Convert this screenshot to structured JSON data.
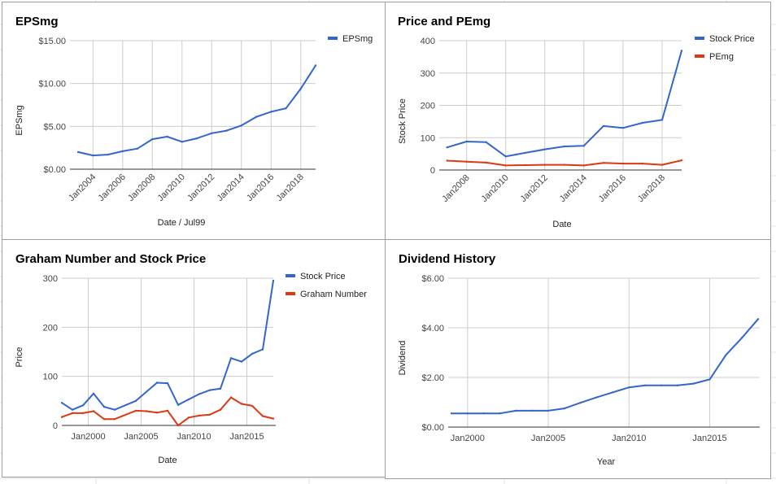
{
  "colors": {
    "blue": "#3366cc",
    "red": "#dc3912",
    "grid": "#cccccc"
  },
  "chart_data": [
    {
      "type": "line",
      "title": "EPSmg",
      "xlabel": "Date / Jul99",
      "ylabel": "EPSmg",
      "x_ticks": [
        "Jan2004",
        "Jan2006",
        "Jan2008",
        "Jan2010",
        "Jan2012",
        "Jan2014",
        "Jan2016",
        "Jan2018"
      ],
      "y_ticks": [
        "$0.00",
        "$5.00",
        "$10.00",
        "$15.00"
      ],
      "ylim": [
        0,
        15
      ],
      "legend": "right",
      "series": [
        {
          "name": "EPSmg",
          "color": "#3366cc",
          "x": [
            2003,
            2004,
            2005,
            2006,
            2007,
            2008,
            2009,
            2010,
            2011,
            2012,
            2013,
            2014,
            2015,
            2016,
            2017,
            2018,
            2019
          ],
          "values": [
            2.0,
            1.6,
            1.7,
            2.1,
            2.4,
            3.5,
            3.8,
            3.2,
            3.6,
            4.2,
            4.5,
            5.1,
            6.1,
            6.7,
            7.1,
            9.4,
            12.1
          ]
        }
      ]
    },
    {
      "type": "line",
      "title": "Price and PEmg",
      "xlabel": "Date",
      "ylabel": "Stock Price",
      "x_ticks": [
        "Jan2008",
        "Jan2010",
        "Jan2012",
        "Jan2014",
        "Jan2016",
        "Jan2018"
      ],
      "y_ticks": [
        "0",
        "100",
        "200",
        "300",
        "400"
      ],
      "ylim": [
        0,
        400
      ],
      "legend": "right",
      "series": [
        {
          "name": "Stock Price",
          "color": "#3366cc",
          "x": [
            2007,
            2008,
            2009,
            2010,
            2011,
            2012,
            2013,
            2014,
            2015,
            2016,
            2017,
            2018,
            2019
          ],
          "values": [
            70,
            88,
            86,
            42,
            53,
            64,
            73,
            75,
            136,
            130,
            146,
            155,
            369
          ]
        },
        {
          "name": "PEmg",
          "color": "#dc3912",
          "x": [
            2007,
            2008,
            2009,
            2010,
            2011,
            2012,
            2013,
            2014,
            2015,
            2016,
            2017,
            2018,
            2019
          ],
          "values": [
            29,
            26,
            23,
            14,
            15,
            16,
            16,
            14,
            22,
            20,
            20,
            16,
            30
          ]
        }
      ]
    },
    {
      "type": "line",
      "title": "Graham Number and Stock Price",
      "xlabel": "Date",
      "ylabel": "Price",
      "x_ticks": [
        "Jan2000",
        "Jan2005",
        "Jan2010",
        "Jan2015"
      ],
      "y_ticks": [
        "0",
        "100",
        "200",
        "300"
      ],
      "ylim": [
        0,
        300
      ],
      "legend": "right",
      "series": [
        {
          "name": "Stock Price",
          "color": "#3366cc",
          "x": [
            1997.5,
            1998.5,
            1999.5,
            2000.5,
            2001.5,
            2002.5,
            2004.5,
            2006.5,
            2007.5,
            2008.5,
            2009.5,
            2010.5,
            2011.5,
            2012.5,
            2013.5,
            2014.5,
            2015.5,
            2016.5,
            2017.5
          ],
          "values": [
            46,
            32,
            41,
            65,
            38,
            32,
            50,
            87,
            86,
            42,
            53,
            64,
            72,
            75,
            137,
            130,
            146,
            155,
            295
          ]
        },
        {
          "name": "Graham Number",
          "color": "#dc3912",
          "x": [
            1997.5,
            1998.5,
            1999.5,
            2000.5,
            2001.5,
            2002.5,
            2004.5,
            2005.5,
            2006.5,
            2007.5,
            2008.5,
            2009.5,
            2010.5,
            2011.5,
            2012.5,
            2013.5,
            2014.5,
            2015.5,
            2016.5,
            2017.5
          ],
          "values": [
            17,
            25,
            25,
            29,
            13,
            13,
            30,
            29,
            26,
            30,
            0,
            16,
            20,
            22,
            32,
            57,
            44,
            40,
            19,
            14
          ]
        }
      ]
    },
    {
      "type": "line",
      "title": "Dividend History",
      "xlabel": "Year",
      "ylabel": "Dividend",
      "x_ticks": [
        "Jan2000",
        "Jan2005",
        "Jan2010",
        "Jan2015"
      ],
      "y_ticks": [
        "$0.00",
        "$2.00",
        "$4.00",
        "$6.00"
      ],
      "ylim": [
        0,
        6
      ],
      "series": [
        {
          "name": "Dividend",
          "color": "#3366cc",
          "x": [
            1999,
            2000,
            2001,
            2002,
            2003,
            2004,
            2005,
            2006,
            2007,
            2008,
            2009,
            2010,
            2011,
            2012,
            2013,
            2014,
            2015,
            2016,
            2017,
            2018
          ],
          "values": [
            0.55,
            0.55,
            0.55,
            0.55,
            0.66,
            0.66,
            0.66,
            0.75,
            0.98,
            1.2,
            1.4,
            1.6,
            1.68,
            1.68,
            1.68,
            1.75,
            1.92,
            2.9,
            3.6,
            4.35
          ]
        }
      ]
    }
  ]
}
